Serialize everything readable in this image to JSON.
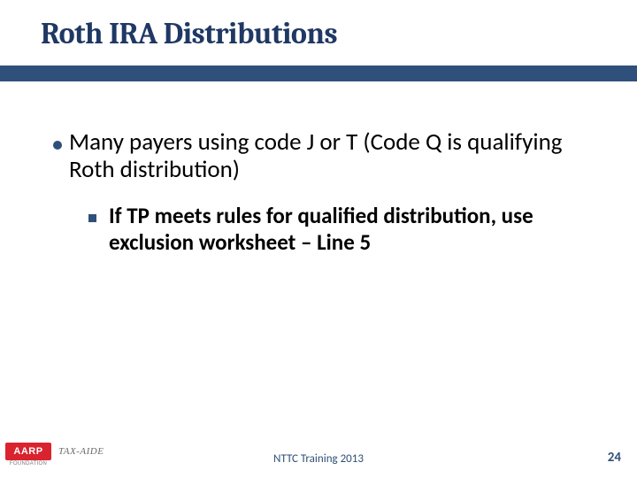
{
  "title": {
    "text": "Roth IRA Distributions",
    "color": "#1f3864",
    "fontsize": 34
  },
  "title_bar": {
    "color": "#2f507a",
    "height": 18
  },
  "bullet_main": {
    "text": "Many payers using code J or T (Code Q is qualifying Roth distribution)",
    "color": "#000000",
    "fontsize": 27,
    "marker_color": "#2f507a",
    "marker_size": 10
  },
  "bullet_sub": {
    "text": "If TP meets rules for qualified distribution, use exclusion worksheet – Line 5",
    "color": "#000000",
    "fontsize": 25,
    "marker_color": "#2f507a",
    "marker_size": 9
  },
  "footer": {
    "logo_text": "AARP",
    "logo_bg": "#d9232e",
    "logo_fg": "#ffffff",
    "logo_fontsize": 11,
    "foundation_text": "FOUNDATION",
    "foundation_color": "#7a7a7a",
    "foundation_fontsize": 6,
    "taxaide_text": "TAX-AIDE",
    "taxaide_color": "#6a6a6a",
    "taxaide_fontsize": 11,
    "center_text": "NTTC Training 2013",
    "center_color": "#305078",
    "center_fontsize": 13,
    "slide_number": "24",
    "slide_number_color": "#305078",
    "slide_number_fontsize": 15
  },
  "background_color": "#ffffff"
}
